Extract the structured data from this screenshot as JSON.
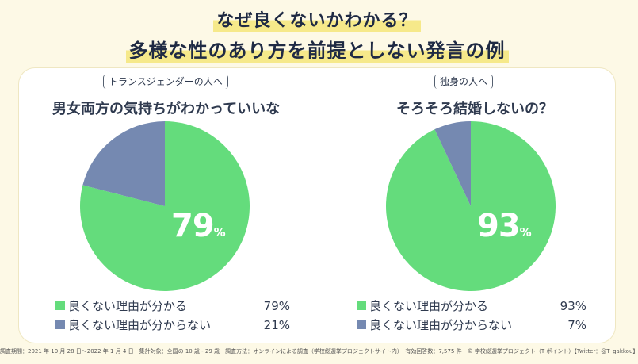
{
  "title_line1": "なぜ良くないかわかる？",
  "title_line2": "多様な性のあり方を前提としない発言の例",
  "colors": {
    "good": "#64dc7c",
    "bad": "#7589b1",
    "highlight": "#f6e98a"
  },
  "chart_data": [
    {
      "type": "pie",
      "target_label": "トランスジェンダーの人へ",
      "question": "男女両方の気持ちがわかっていいな",
      "center_value": "79",
      "center_unit": "%",
      "categories": [
        "良くない理由が分かる",
        "良くない理由が分からない"
      ],
      "values": [
        79,
        21
      ],
      "value_labels": [
        "79%",
        "21%"
      ]
    },
    {
      "type": "pie",
      "target_label": "独身の人へ",
      "question": "そろそろ結婚しないの？",
      "center_value": "93",
      "center_unit": "%",
      "categories": [
        "良くない理由が分かる",
        "良くない理由が分からない"
      ],
      "values": [
        93,
        7
      ],
      "value_labels": [
        "93%",
        "7%"
      ]
    }
  ],
  "footer": "調査期間：2021 年 10 月 28 日〜2022 年 1 月 4 日　集計対象：全国の 10 歳 - 29 歳　調査方法：オンラインによる調査（学校総選挙プロジェクトサイト内）　有効回答数：7,575 件　© 学校総選挙プロジェクト（T ポイント）【Twitter：@T_gakkou】"
}
